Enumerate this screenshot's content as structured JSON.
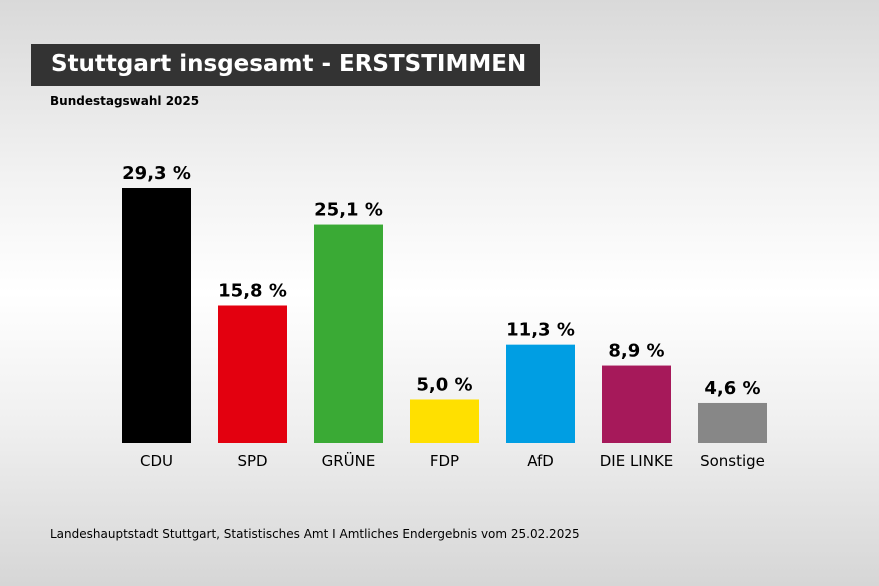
{
  "header": {
    "title": "Stuttgart insgesamt - ERSTSTIMMEN",
    "subtitle": "Bundestagswahl 2025"
  },
  "footer": {
    "source": "Landeshauptstadt Stuttgart, Statistisches Amt I Amtliches Endergebnis vom 25.02.2025"
  },
  "chart_data": {
    "type": "bar",
    "title": "Stuttgart insgesamt - ERSTSTIMMEN",
    "subtitle": "Bundestagswahl 2025",
    "xlabel": "",
    "ylabel": "",
    "ylim": [
      0,
      29.3
    ],
    "grid": false,
    "categories": [
      "CDU",
      "SPD",
      "GRÜNE",
      "FDP",
      "AfD",
      "DIE LINKE",
      "Sonstige"
    ],
    "values": [
      29.3,
      15.8,
      25.1,
      5.0,
      11.3,
      8.9,
      4.6
    ],
    "value_labels": [
      "29,3 %",
      "15,8 %",
      "25,1 %",
      "5,0 %",
      "11,3 %",
      "8,9 %",
      "4,6 %"
    ],
    "colors": [
      "#000000",
      "#e3000f",
      "#3aaa35",
      "#ffe000",
      "#009ee3",
      "#a6195a",
      "#878787"
    ]
  }
}
